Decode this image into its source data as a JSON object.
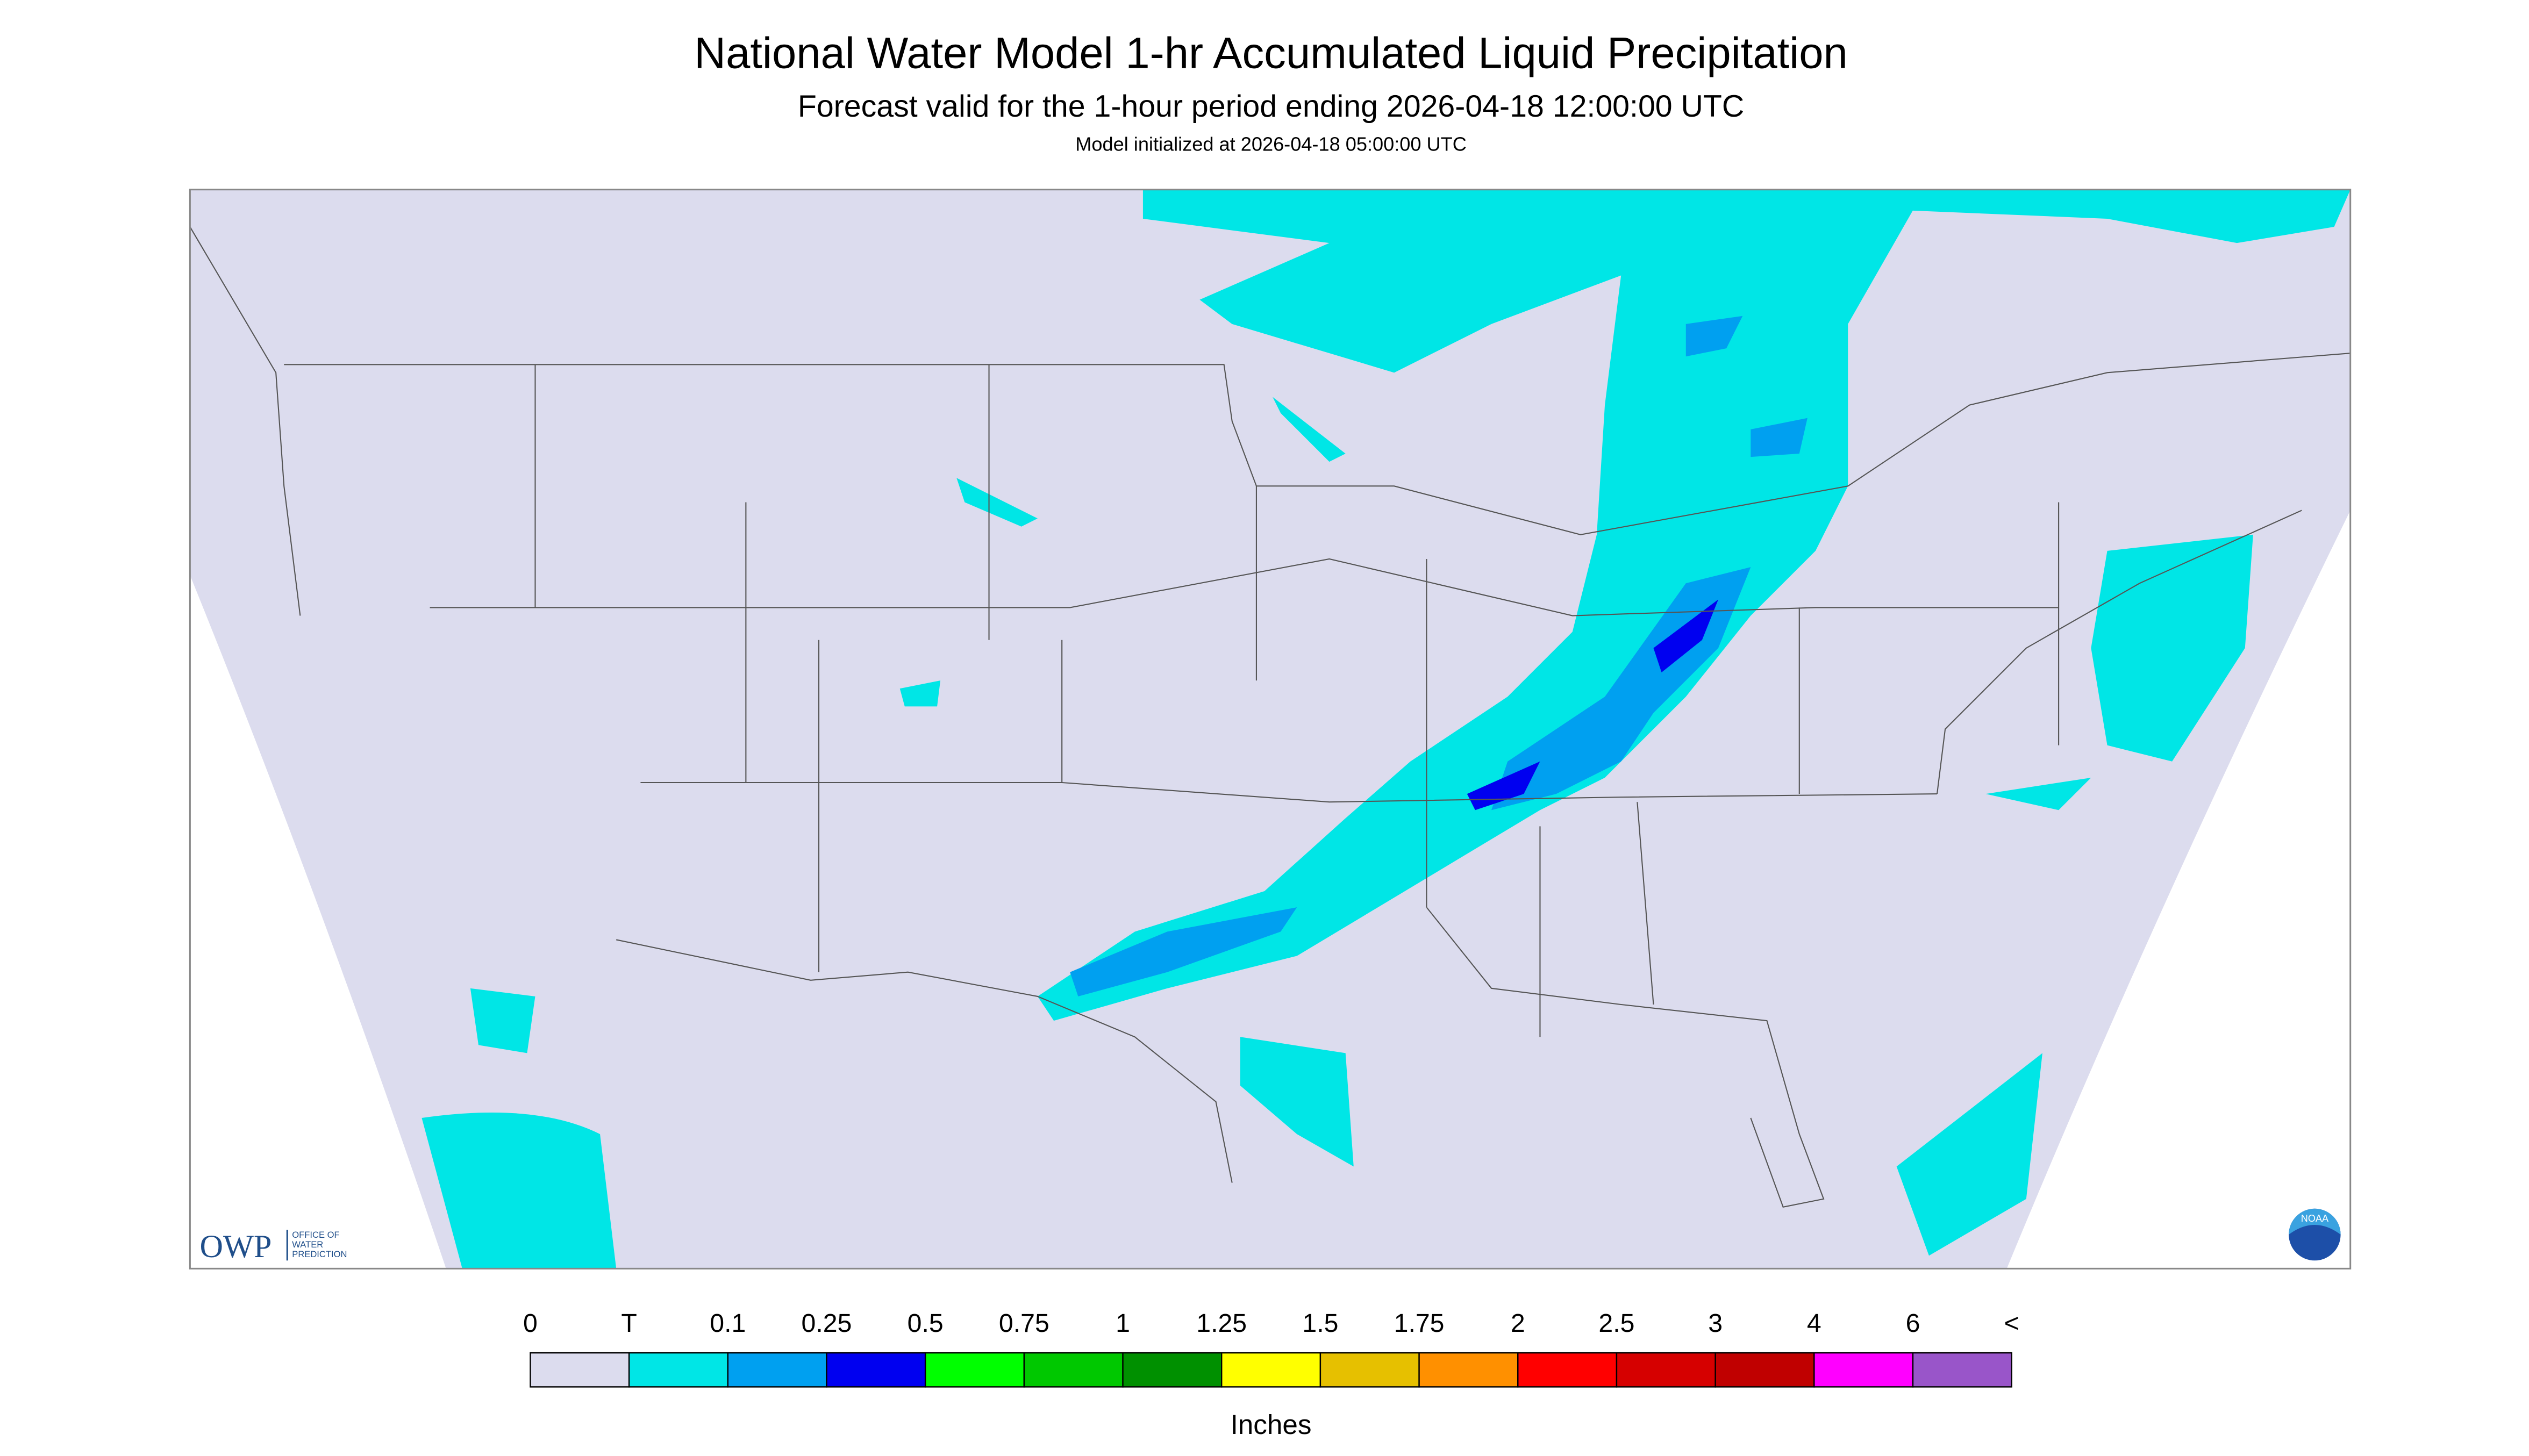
{
  "header": {
    "title": "National Water Model 1-hr Accumulated Liquid Precipitation",
    "subtitle": "Forecast valid for the 1-hour period ending 2026-04-18 12:00:00 UTC",
    "note": "Model initialized at 2026-04-18 05:00:00 UTC"
  },
  "logo": {
    "acronym": "OWP",
    "line1": "OFFICE OF",
    "line2": "WATER",
    "line3": "PREDICTION",
    "noaa": "NOAA"
  },
  "legend": {
    "labels": [
      "0",
      "T",
      "0.1",
      "0.25",
      "0.5",
      "0.75",
      "1",
      "1.25",
      "1.5",
      "1.75",
      "2",
      "2.5",
      "3",
      "4",
      "6",
      "<"
    ],
    "colors": [
      "#dcdcee",
      "#00e6e6",
      "#00a0f0",
      "#0000f0",
      "#00ff00",
      "#00c800",
      "#009000",
      "#ffff00",
      "#e6c000",
      "#ff9000",
      "#ff0000",
      "#d60000",
      "#c00000",
      "#ff00ff",
      "#9955c9"
    ],
    "unit": "Inches"
  }
}
